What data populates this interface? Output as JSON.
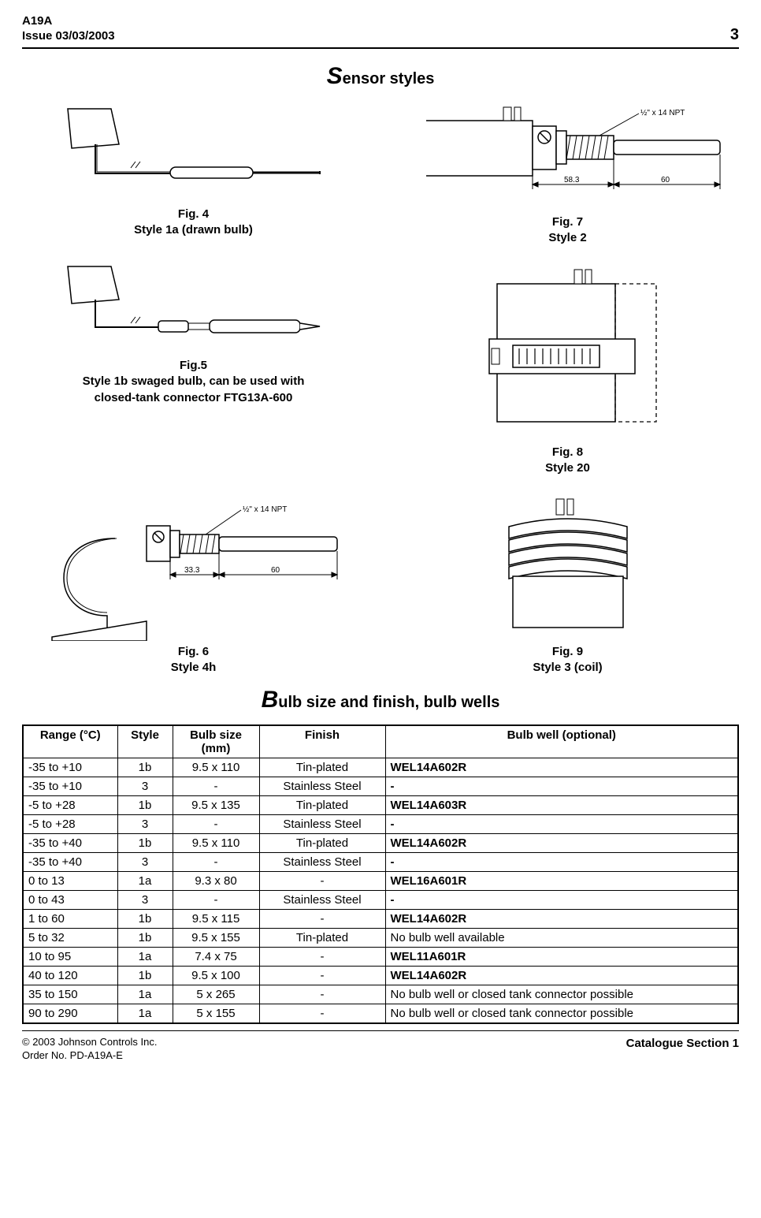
{
  "header": {
    "model": "A19A",
    "issue": "Issue 03/03/2003",
    "pagenum": "3"
  },
  "sections": {
    "sensor_title_cap": "S",
    "sensor_title_rest": "ensor styles",
    "bulb_title_cap": "B",
    "bulb_title_rest": "ulb size and finish, bulb wells"
  },
  "figs": {
    "f4_l1": "Fig. 4",
    "f4_l2": "Style 1a (drawn bulb)",
    "f5_l1": "Fig.5",
    "f5_l2": "Style 1b swaged bulb, can be used with",
    "f5_l3": "closed-tank connector FTG13A-600",
    "f6_l1": "Fig. 6",
    "f6_l2": "Style 4h",
    "f7_l1": "Fig. 7",
    "f7_l2": "Style 2",
    "f7_npt": "½\" x 14 NPT",
    "f7_d1": "58.3",
    "f7_d2": "60",
    "f6_npt": "½\" x 14 NPT",
    "f6_d1": "33.3",
    "f6_d2": "60",
    "f8_l1": "Fig. 8",
    "f8_l2": "Style 20",
    "f9_l1": "Fig. 9",
    "f9_l2": "Style 3 (coil)"
  },
  "table": {
    "headers": {
      "range": "Range (°C)",
      "style": "Style",
      "bulb": "Bulb size (mm)",
      "finish": "Finish",
      "well": "Bulb well (optional)"
    },
    "rows": [
      {
        "range": "-35 to +10",
        "style": "1b",
        "bulb": "9.5 x 110",
        "finish": "Tin-plated",
        "well": "WEL14A602R",
        "well_bold": true
      },
      {
        "range": "-35 to +10",
        "style": "3",
        "bulb": "-",
        "finish": "Stainless Steel",
        "well": "-",
        "well_bold": true
      },
      {
        "range": "-5 to +28",
        "style": "1b",
        "bulb": "9.5 x 135",
        "finish": "Tin-plated",
        "well": "WEL14A603R",
        "well_bold": true
      },
      {
        "range": "-5 to +28",
        "style": "3",
        "bulb": "-",
        "finish": "Stainless Steel",
        "well": "-",
        "well_bold": true
      },
      {
        "range": "-35 to +40",
        "style": "1b",
        "bulb": "9.5 x 110",
        "finish": "Tin-plated",
        "well": "WEL14A602R",
        "well_bold": true
      },
      {
        "range": "-35 to +40",
        "style": "3",
        "bulb": "-",
        "finish": "Stainless Steel",
        "well": "-",
        "well_bold": true
      },
      {
        "range": "0 to 13",
        "style": "1a",
        "bulb": "9.3 x   80",
        "finish": "-",
        "well": "WEL16A601R",
        "well_bold": true
      },
      {
        "range": "0 to 43",
        "style": "3",
        "bulb": "-",
        "finish": "Stainless Steel",
        "well": "-",
        "well_bold": true
      },
      {
        "range": "1 to 60",
        "style": "1b",
        "bulb": "9.5 x 115",
        "finish": "-",
        "well": "WEL14A602R",
        "well_bold": true
      },
      {
        "range": "5 to 32",
        "style": "1b",
        "bulb": "9.5 x 155",
        "finish": "Tin-plated",
        "well": "No bulb well available",
        "well_bold": false
      },
      {
        "range": "10 to 95",
        "style": "1a",
        "bulb": "7.4 x   75",
        "finish": "-",
        "well": "WEL11A601R",
        "well_bold": true
      },
      {
        "range": "40 to 120",
        "style": "1b",
        "bulb": "9.5 x 100",
        "finish": "-",
        "well": "WEL14A602R",
        "well_bold": true
      },
      {
        "range": "35 to 150",
        "style": "1a",
        "bulb": "5    x 265",
        "finish": "-",
        "well": "No bulb well or closed tank connector possible",
        "well_bold": false
      },
      {
        "range": "90 to 290",
        "style": "1a",
        "bulb": "5    x 155",
        "finish": "-",
        "well": "No bulb well or closed tank connector possible",
        "well_bold": false
      }
    ]
  },
  "footer": {
    "copyright": "© 2003 Johnson Controls Inc.",
    "orderno": "Order No. PD-A19A-E",
    "section": "Catalogue Section 1"
  }
}
